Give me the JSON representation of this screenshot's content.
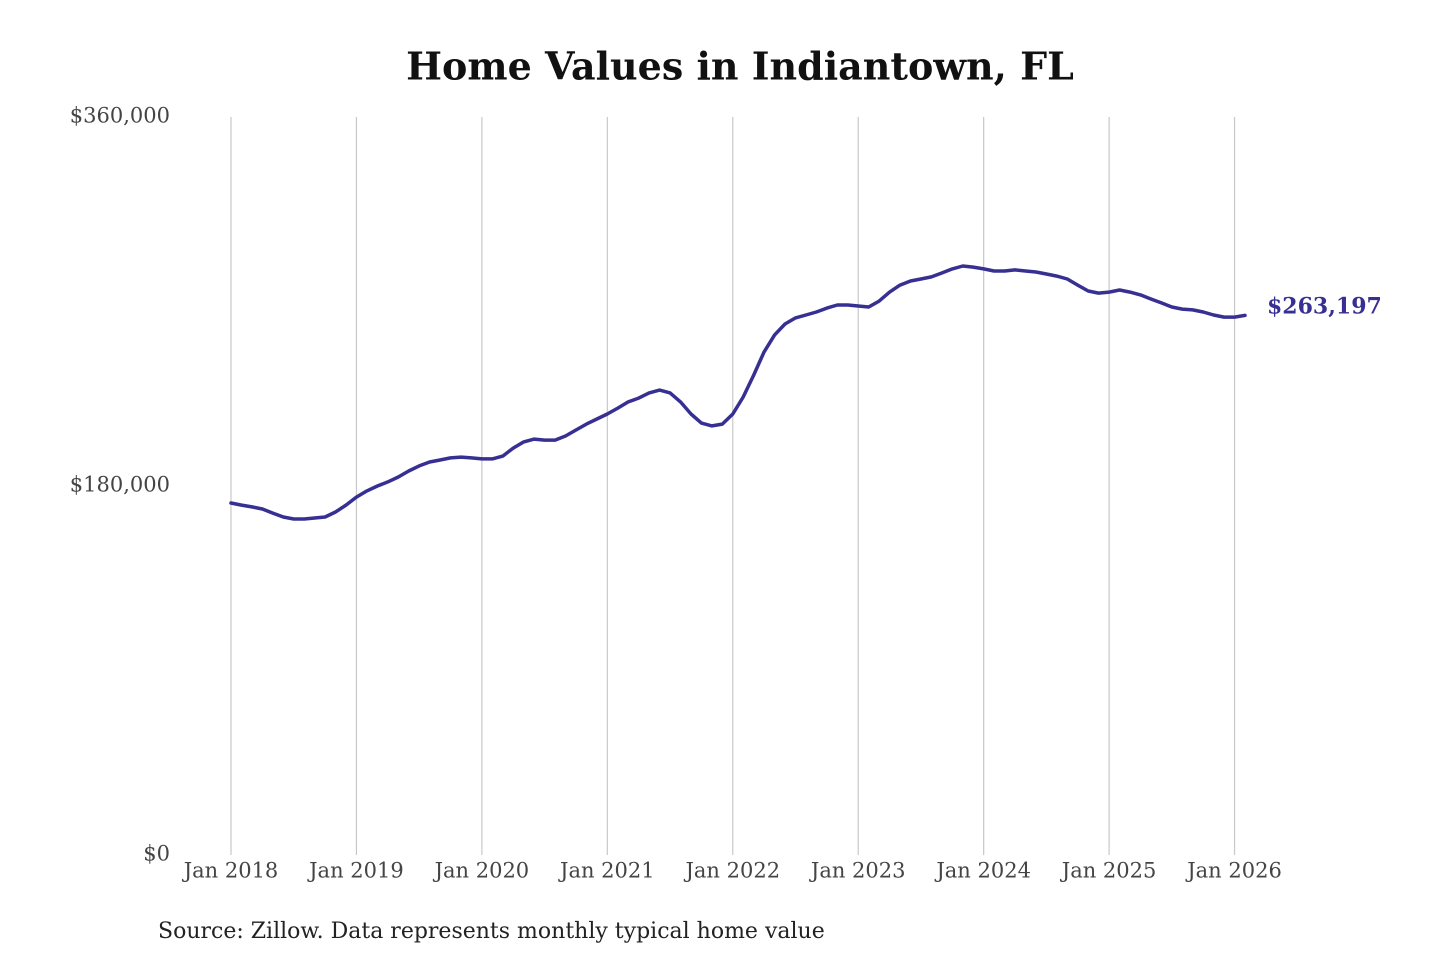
{
  "chart_data": {
    "type": "line",
    "title": "Home Values in Indiantown, FL",
    "source": "Source: Zillow. Data represents monthly typical home value",
    "x": [
      "2018-01",
      "2018-02",
      "2018-03",
      "2018-04",
      "2018-05",
      "2018-06",
      "2018-07",
      "2018-08",
      "2018-09",
      "2018-10",
      "2018-11",
      "2018-12",
      "2019-01",
      "2019-02",
      "2019-03",
      "2019-04",
      "2019-05",
      "2019-06",
      "2019-07",
      "2019-08",
      "2019-09",
      "2019-10",
      "2019-11",
      "2019-12",
      "2020-01",
      "2020-02",
      "2020-03",
      "2020-04",
      "2020-05",
      "2020-06",
      "2020-07",
      "2020-08",
      "2020-09",
      "2020-10",
      "2020-11",
      "2020-12",
      "2021-01",
      "2021-02",
      "2021-03",
      "2021-04",
      "2021-05",
      "2021-06",
      "2021-07",
      "2021-08",
      "2021-09",
      "2021-10",
      "2021-11",
      "2021-12",
      "2022-01",
      "2022-02",
      "2022-03",
      "2022-04",
      "2022-05",
      "2022-06",
      "2022-07",
      "2022-08",
      "2022-09",
      "2022-10",
      "2022-11",
      "2022-12",
      "2023-01",
      "2023-02",
      "2023-03",
      "2023-04",
      "2023-05",
      "2023-06",
      "2023-07",
      "2023-08",
      "2023-09",
      "2023-10",
      "2023-11",
      "2023-12",
      "2024-01",
      "2024-02",
      "2024-03",
      "2024-04",
      "2024-05",
      "2024-06",
      "2024-07",
      "2024-08",
      "2024-09",
      "2024-10",
      "2024-11",
      "2024-12",
      "2025-01",
      "2025-02",
      "2025-03",
      "2025-04",
      "2025-05",
      "2025-06",
      "2025-07",
      "2025-08",
      "2025-09",
      "2025-10",
      "2025-11",
      "2025-12",
      "2026-01",
      "2026-02"
    ],
    "series": [
      {
        "color": "#373092",
        "values": [
          171700,
          170700,
          169800,
          168800,
          166800,
          164900,
          163900,
          163900,
          164400,
          164900,
          167300,
          170700,
          174600,
          177600,
          180000,
          182000,
          184400,
          187300,
          189800,
          191700,
          192700,
          193700,
          194100,
          193700,
          193200,
          193200,
          194600,
          198500,
          201500,
          202900,
          202400,
          202400,
          204400,
          207300,
          210200,
          212700,
          215100,
          218000,
          221000,
          222900,
          225400,
          226800,
          225400,
          221000,
          215100,
          210700,
          209300,
          210200,
          215100,
          223400,
          234100,
          245400,
          253700,
          259000,
          262000,
          263400,
          264900,
          266800,
          268300,
          268300,
          267800,
          267300,
          270200,
          274600,
          278000,
          280000,
          281000,
          282000,
          283900,
          285900,
          287300,
          286800,
          285900,
          284900,
          284900,
          285400,
          284900,
          284400,
          283400,
          282400,
          281000,
          278000,
          275100,
          274100,
          274600,
          275600,
          274600,
          273200,
          271200,
          269300,
          267300,
          266300,
          265900,
          264900,
          263400,
          262400,
          262400,
          263197
        ],
        "value_labels": [
          null,
          null,
          null,
          null,
          null,
          null,
          null,
          null,
          null,
          null,
          null,
          null,
          null,
          null,
          null,
          null,
          null,
          null,
          null,
          null,
          null,
          null,
          null,
          null,
          null,
          null,
          null,
          null,
          null,
          null,
          null,
          null,
          null,
          null,
          null,
          null,
          null,
          null,
          null,
          null,
          null,
          null,
          null,
          null,
          null,
          null,
          null,
          null,
          null,
          null,
          null,
          null,
          null,
          null,
          null,
          null,
          null,
          null,
          null,
          null,
          null,
          null,
          null,
          null,
          null,
          null,
          null,
          null,
          null,
          null,
          null,
          null,
          null,
          null,
          null,
          null,
          null,
          null,
          null,
          null,
          null,
          null,
          null,
          null,
          null,
          null,
          null,
          null,
          null,
          null,
          null,
          null,
          null,
          null,
          null,
          null,
          null,
          "$263,197"
        ]
      }
    ],
    "xlim": [
      "2018-01",
      "2026-02"
    ],
    "xticks": [
      {
        "value": "2018-01",
        "label": "Jan 2018"
      },
      {
        "value": "2019-01",
        "label": "Jan 2019"
      },
      {
        "value": "2020-01",
        "label": "Jan 2020"
      },
      {
        "value": "2021-01",
        "label": "Jan 2021"
      },
      {
        "value": "2022-01",
        "label": "Jan 2022"
      },
      {
        "value": "2023-01",
        "label": "Jan 2023"
      },
      {
        "value": "2024-01",
        "label": "Jan 2024"
      },
      {
        "value": "2025-01",
        "label": "Jan 2025"
      },
      {
        "value": "2026-01",
        "label": "Jan 2026"
      }
    ],
    "ylim": [
      0,
      360000
    ],
    "yticks": [
      {
        "value": 0,
        "label": "$0"
      },
      {
        "value": 180000,
        "label": "$180,000"
      },
      {
        "value": 360000,
        "label": "$360,000"
      }
    ],
    "grid": "x"
  }
}
